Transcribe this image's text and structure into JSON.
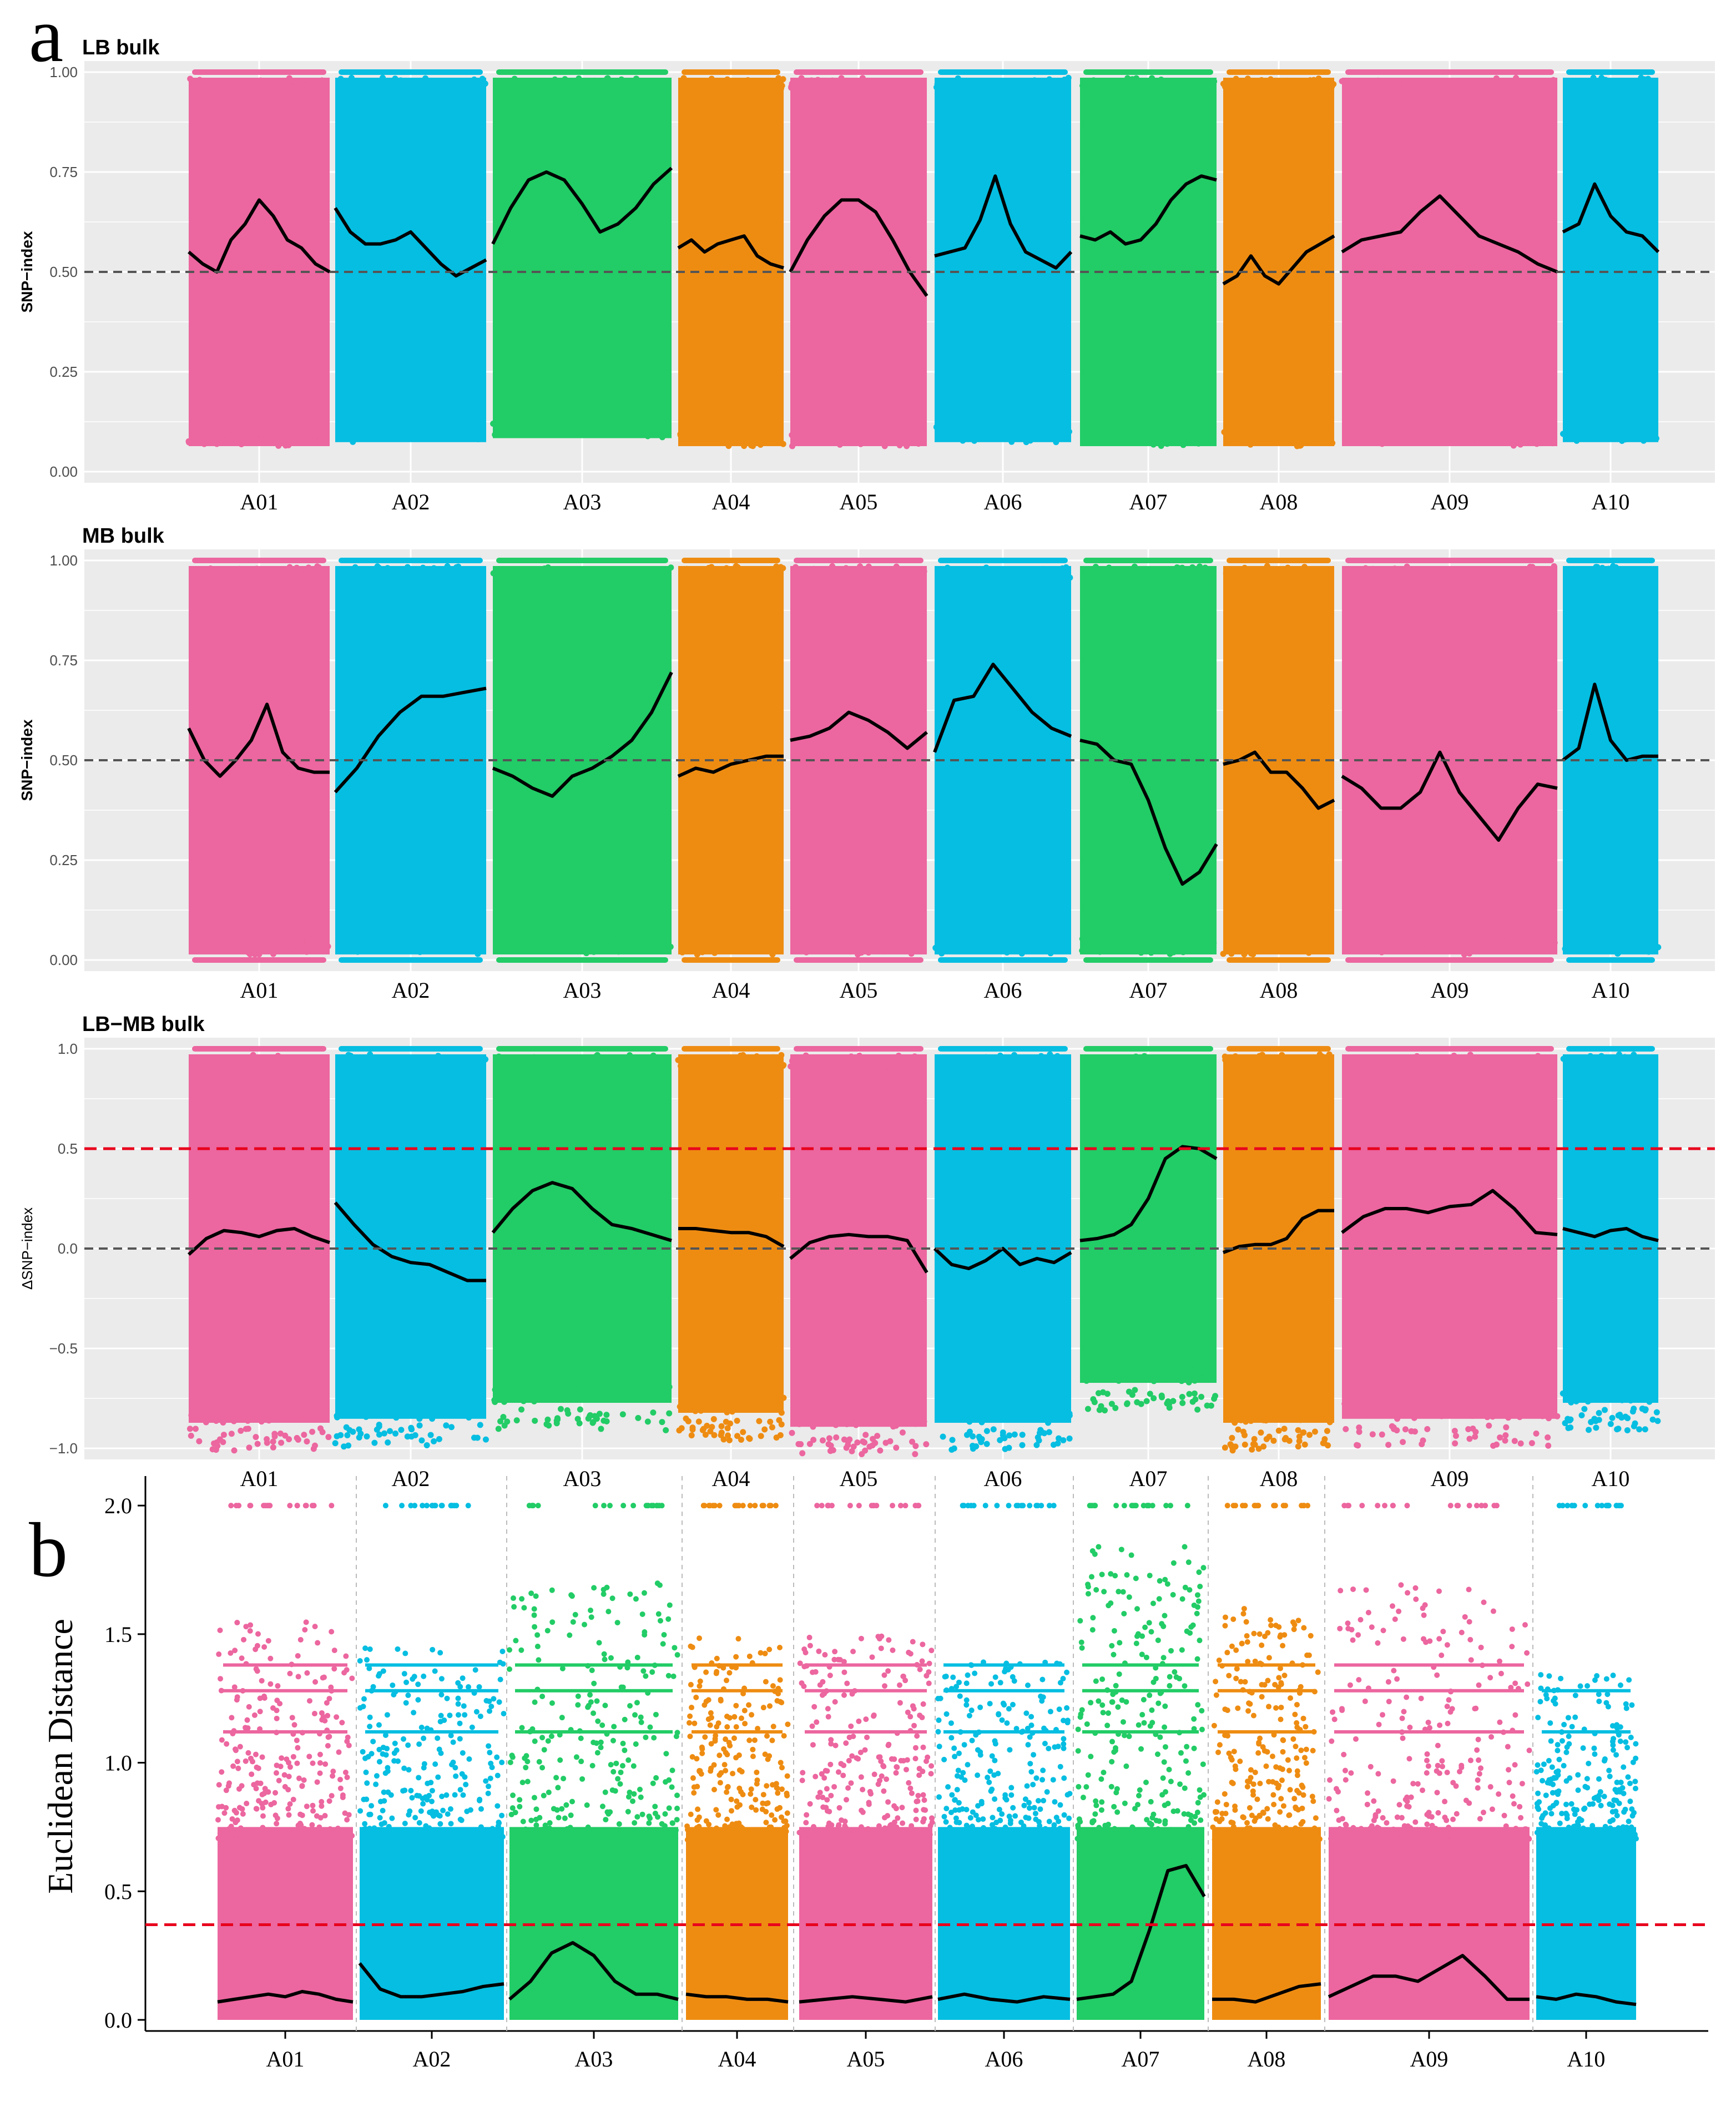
{
  "panel_labels": {
    "a": "a",
    "b": "b"
  },
  "colors": {
    "pink": "#EC669F",
    "blue": "#06BEE1",
    "green": "#22CC66",
    "orange": "#EE8C12",
    "panel_bg": "#EBEBEB",
    "grid": "#FFFFFF",
    "fit_line": "#000000",
    "ref_line": "#555555",
    "threshold": "#E8001C"
  },
  "chart_data": [
    {
      "type": "scatter",
      "title": "LB bulk",
      "ylabel": "SNP−index",
      "xlabel": "",
      "ylim": [
        0,
        1
      ],
      "yticks": [
        "0.00",
        "0.25",
        "0.50",
        "0.75",
        "1.00"
      ],
      "ytick_values": [
        0,
        0.25,
        0.5,
        0.75,
        1
      ],
      "reference_line": 0.5,
      "categories": [
        "A01",
        "A02",
        "A03",
        "A04",
        "A05",
        "A06",
        "A07",
        "A08",
        "A09",
        "A10"
      ],
      "series": [
        {
          "name": "A01",
          "color": "pink",
          "cloud_min": 0.05,
          "cloud_max": 1.0,
          "trend": [
            0.55,
            0.52,
            0.5,
            0.58,
            0.62,
            0.68,
            0.64,
            0.58,
            0.56,
            0.52,
            0.5
          ]
        },
        {
          "name": "A02",
          "color": "blue",
          "cloud_min": 0.06,
          "cloud_max": 1.0,
          "trend": [
            0.66,
            0.6,
            0.57,
            0.57,
            0.58,
            0.6,
            0.56,
            0.52,
            0.49,
            0.51,
            0.53
          ]
        },
        {
          "name": "A03",
          "color": "green",
          "cloud_min": 0.07,
          "cloud_max": 1.0,
          "trend": [
            0.57,
            0.66,
            0.73,
            0.75,
            0.73,
            0.67,
            0.6,
            0.62,
            0.66,
            0.72,
            0.76
          ]
        },
        {
          "name": "A04",
          "color": "orange",
          "cloud_min": 0.05,
          "cloud_max": 1.0,
          "trend": [
            0.56,
            0.58,
            0.55,
            0.57,
            0.58,
            0.59,
            0.54,
            0.52,
            0.51
          ]
        },
        {
          "name": "A05",
          "color": "pink",
          "cloud_min": 0.05,
          "cloud_max": 1.0,
          "trend": [
            0.5,
            0.58,
            0.64,
            0.68,
            0.68,
            0.65,
            0.58,
            0.5,
            0.44
          ]
        },
        {
          "name": "A06",
          "color": "blue",
          "cloud_min": 0.06,
          "cloud_max": 1.0,
          "trend": [
            0.54,
            0.55,
            0.56,
            0.63,
            0.74,
            0.62,
            0.55,
            0.53,
            0.51,
            0.55
          ]
        },
        {
          "name": "A07",
          "color": "green",
          "cloud_min": 0.05,
          "cloud_max": 1.0,
          "trend": [
            0.59,
            0.58,
            0.6,
            0.57,
            0.58,
            0.62,
            0.68,
            0.72,
            0.74,
            0.73
          ]
        },
        {
          "name": "A08",
          "color": "orange",
          "cloud_min": 0.05,
          "cloud_max": 1.0,
          "trend": [
            0.47,
            0.49,
            0.54,
            0.49,
            0.47,
            0.51,
            0.55,
            0.57,
            0.59
          ]
        },
        {
          "name": "A09",
          "color": "pink",
          "cloud_min": 0.05,
          "cloud_max": 1.0,
          "trend": [
            0.55,
            0.58,
            0.59,
            0.6,
            0.65,
            0.69,
            0.64,
            0.59,
            0.57,
            0.55,
            0.52,
            0.5
          ]
        },
        {
          "name": "A10",
          "color": "blue",
          "cloud_min": 0.06,
          "cloud_max": 1.0,
          "trend": [
            0.6,
            0.62,
            0.72,
            0.64,
            0.6,
            0.59,
            0.55
          ]
        }
      ]
    },
    {
      "type": "scatter",
      "title": "MB bulk",
      "ylabel": "SNP−index",
      "xlabel": "",
      "ylim": [
        0,
        1
      ],
      "yticks": [
        "0.00",
        "0.25",
        "0.50",
        "0.75",
        "1.00"
      ],
      "ytick_values": [
        0,
        0.25,
        0.5,
        0.75,
        1
      ],
      "reference_line": 0.5,
      "categories": [
        "A01",
        "A02",
        "A03",
        "A04",
        "A05",
        "A06",
        "A07",
        "A08",
        "A09",
        "A10"
      ],
      "series": [
        {
          "name": "A01",
          "color": "pink",
          "cloud_min": 0.0,
          "cloud_max": 1.0,
          "trend": [
            0.58,
            0.5,
            0.46,
            0.5,
            0.55,
            0.64,
            0.52,
            0.48,
            0.47,
            0.47
          ]
        },
        {
          "name": "A02",
          "color": "blue",
          "cloud_min": 0.0,
          "cloud_max": 1.0,
          "trend": [
            0.42,
            0.48,
            0.56,
            0.62,
            0.66,
            0.66,
            0.67,
            0.68
          ]
        },
        {
          "name": "A03",
          "color": "green",
          "cloud_min": 0.0,
          "cloud_max": 1.0,
          "trend": [
            0.48,
            0.46,
            0.43,
            0.41,
            0.46,
            0.48,
            0.51,
            0.55,
            0.62,
            0.72
          ]
        },
        {
          "name": "A04",
          "color": "orange",
          "cloud_min": 0.0,
          "cloud_max": 1.0,
          "trend": [
            0.46,
            0.48,
            0.47,
            0.49,
            0.5,
            0.51,
            0.51
          ]
        },
        {
          "name": "A05",
          "color": "pink",
          "cloud_min": 0.0,
          "cloud_max": 1.0,
          "trend": [
            0.55,
            0.56,
            0.58,
            0.62,
            0.6,
            0.57,
            0.53,
            0.57
          ]
        },
        {
          "name": "A06",
          "color": "blue",
          "cloud_min": 0.0,
          "cloud_max": 1.0,
          "trend": [
            0.52,
            0.65,
            0.66,
            0.74,
            0.68,
            0.62,
            0.58,
            0.56
          ]
        },
        {
          "name": "A07",
          "color": "green",
          "cloud_min": 0.0,
          "cloud_max": 1.0,
          "trend": [
            0.55,
            0.54,
            0.5,
            0.49,
            0.4,
            0.28,
            0.19,
            0.22,
            0.29
          ]
        },
        {
          "name": "A08",
          "color": "orange",
          "cloud_min": 0.0,
          "cloud_max": 1.0,
          "trend": [
            0.49,
            0.5,
            0.52,
            0.47,
            0.47,
            0.43,
            0.38,
            0.4
          ]
        },
        {
          "name": "A09",
          "color": "pink",
          "cloud_min": 0.0,
          "cloud_max": 1.0,
          "trend": [
            0.46,
            0.43,
            0.38,
            0.38,
            0.42,
            0.52,
            0.42,
            0.36,
            0.3,
            0.38,
            0.44,
            0.43
          ]
        },
        {
          "name": "A10",
          "color": "blue",
          "cloud_min": 0.0,
          "cloud_max": 1.0,
          "trend": [
            0.5,
            0.53,
            0.69,
            0.55,
            0.5,
            0.51,
            0.51
          ]
        }
      ]
    },
    {
      "type": "scatter",
      "title": "LB−MB bulk",
      "ylabel": "ΔSNP−index",
      "xlabel": "",
      "ylim": [
        -1,
        1
      ],
      "yticks": [
        "−1.0",
        "−0.5",
        "0.0",
        "0.5",
        "1.0"
      ],
      "ytick_values": [
        -1,
        -0.5,
        0,
        0.5,
        1
      ],
      "reference_line": 0.0,
      "threshold": 0.5,
      "categories": [
        "A01",
        "A02",
        "A03",
        "A04",
        "A05",
        "A06",
        "A07",
        "A08",
        "A09",
        "A10"
      ],
      "series": [
        {
          "name": "A01",
          "color": "pink",
          "cloud_min": -0.9,
          "cloud_max": 1.0,
          "trend": [
            -0.03,
            0.05,
            0.09,
            0.08,
            0.06,
            0.09,
            0.1,
            0.06,
            0.03
          ]
        },
        {
          "name": "A02",
          "color": "blue",
          "cloud_min": -0.88,
          "cloud_max": 1.0,
          "trend": [
            0.23,
            0.12,
            0.02,
            -0.04,
            -0.07,
            -0.08,
            -0.12,
            -0.16,
            -0.16
          ]
        },
        {
          "name": "A03",
          "color": "green",
          "cloud_min": -0.8,
          "cloud_max": 1.0,
          "trend": [
            0.08,
            0.2,
            0.29,
            0.33,
            0.3,
            0.2,
            0.12,
            0.1,
            0.07,
            0.04
          ]
        },
        {
          "name": "A04",
          "color": "orange",
          "cloud_min": -0.85,
          "cloud_max": 1.0,
          "trend": [
            0.1,
            0.1,
            0.09,
            0.08,
            0.08,
            0.06,
            0.01
          ]
        },
        {
          "name": "A05",
          "color": "pink",
          "cloud_min": -0.92,
          "cloud_max": 1.0,
          "trend": [
            -0.05,
            0.03,
            0.06,
            0.07,
            0.06,
            0.06,
            0.04,
            -0.12
          ]
        },
        {
          "name": "A06",
          "color": "blue",
          "cloud_min": -0.9,
          "cloud_max": 1.0,
          "trend": [
            0.0,
            -0.08,
            -0.1,
            -0.06,
            0.0,
            -0.08,
            -0.05,
            -0.07,
            -0.02
          ]
        },
        {
          "name": "A07",
          "color": "green",
          "cloud_min": -0.7,
          "cloud_max": 1.0,
          "trend": [
            0.04,
            0.05,
            0.07,
            0.12,
            0.25,
            0.45,
            0.51,
            0.5,
            0.45
          ]
        },
        {
          "name": "A08",
          "color": "orange",
          "cloud_min": -0.9,
          "cloud_max": 1.0,
          "trend": [
            -0.02,
            0.01,
            0.02,
            0.02,
            0.05,
            0.15,
            0.19,
            0.19
          ]
        },
        {
          "name": "A09",
          "color": "pink",
          "cloud_min": -0.88,
          "cloud_max": 1.0,
          "trend": [
            0.08,
            0.16,
            0.2,
            0.2,
            0.18,
            0.21,
            0.22,
            0.29,
            0.2,
            0.08,
            0.07
          ]
        },
        {
          "name": "A10",
          "color": "blue",
          "cloud_min": -0.8,
          "cloud_max": 1.0,
          "trend": [
            0.1,
            0.08,
            0.06,
            0.09,
            0.1,
            0.06,
            0.04
          ]
        }
      ]
    },
    {
      "type": "scatter",
      "title": "",
      "ylabel": "Euclidean Distance",
      "xlabel": "",
      "ylim": [
        0,
        2.05
      ],
      "yticks": [
        "0.0",
        "0.5",
        "1.0",
        "1.5",
        "2.0"
      ],
      "ytick_values": [
        0,
        0.5,
        1,
        1.5,
        2
      ],
      "threshold": 0.37,
      "categories": [
        "A01",
        "A02",
        "A03",
        "A04",
        "A05",
        "A06",
        "A07",
        "A08",
        "A09",
        "A10"
      ],
      "series": [
        {
          "name": "A01",
          "color": "pink",
          "cloud_min": 0.0,
          "cloud_max": 1.55,
          "top_line": 2.0,
          "trend": [
            0.07,
            0.08,
            0.09,
            0.1,
            0.09,
            0.11,
            0.1,
            0.08,
            0.07
          ]
        },
        {
          "name": "A02",
          "color": "blue",
          "cloud_min": 0.0,
          "cloud_max": 1.45,
          "top_line": 2.0,
          "trend": [
            0.22,
            0.12,
            0.09,
            0.09,
            0.1,
            0.11,
            0.13,
            0.14
          ]
        },
        {
          "name": "A03",
          "color": "green",
          "cloud_min": 0.0,
          "cloud_max": 1.7,
          "top_line": 2.0,
          "trend": [
            0.08,
            0.15,
            0.26,
            0.3,
            0.25,
            0.15,
            0.1,
            0.1,
            0.08
          ]
        },
        {
          "name": "A04",
          "color": "orange",
          "cloud_min": 0.0,
          "cloud_max": 1.5,
          "top_line": 2.0,
          "trend": [
            0.1,
            0.09,
            0.09,
            0.08,
            0.08,
            0.07
          ]
        },
        {
          "name": "A05",
          "color": "pink",
          "cloud_min": 0.0,
          "cloud_max": 1.5,
          "top_line": 2.0,
          "trend": [
            0.07,
            0.08,
            0.09,
            0.08,
            0.07,
            0.09
          ]
        },
        {
          "name": "A06",
          "color": "blue",
          "cloud_min": 0.0,
          "cloud_max": 1.4,
          "top_line": 2.0,
          "trend": [
            0.08,
            0.1,
            0.08,
            0.07,
            0.09,
            0.08
          ]
        },
        {
          "name": "A07",
          "color": "green",
          "cloud_min": 0.0,
          "cloud_max": 1.85,
          "top_line": 2.0,
          "trend": [
            0.08,
            0.09,
            0.1,
            0.15,
            0.35,
            0.58,
            0.6,
            0.48
          ]
        },
        {
          "name": "A08",
          "color": "orange",
          "cloud_min": 0.0,
          "cloud_max": 1.6,
          "top_line": 2.0,
          "trend": [
            0.08,
            0.08,
            0.07,
            0.1,
            0.13,
            0.14
          ]
        },
        {
          "name": "A09",
          "color": "pink",
          "cloud_min": 0.0,
          "cloud_max": 1.7,
          "top_line": 2.0,
          "trend": [
            0.09,
            0.13,
            0.17,
            0.17,
            0.15,
            0.2,
            0.25,
            0.17,
            0.08,
            0.08
          ]
        },
        {
          "name": "A10",
          "color": "blue",
          "cloud_min": 0.0,
          "cloud_max": 1.35,
          "top_line": 2.0,
          "trend": [
            0.09,
            0.08,
            0.1,
            0.09,
            0.07,
            0.06
          ]
        }
      ]
    }
  ]
}
